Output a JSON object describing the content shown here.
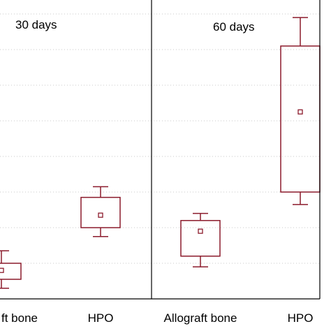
{
  "chart_data": {
    "type": "box",
    "grid": "horizontal dotted",
    "color": "#8b1a2b",
    "panels": [
      {
        "title": "30 days",
        "categories": [
          "Allograft bone",
          "HPO"
        ],
        "category_labels_shown": [
          "ft bone",
          "HPO"
        ],
        "boxes": [
          {
            "category": "Allograft bone",
            "whisker_low": 0.3,
            "q1": 0.55,
            "median": 0.8,
            "q3": 1.0,
            "whisker_high": 1.35
          },
          {
            "category": "HPO",
            "whisker_low": 1.75,
            "q1": 2.0,
            "median": 2.35,
            "q3": 2.85,
            "whisker_high": 3.15
          }
        ]
      },
      {
        "title": "60 days",
        "categories": [
          "Allograft bone",
          "HPO"
        ],
        "category_labels_shown": [
          "Allograft bone",
          "HPO"
        ],
        "boxes": [
          {
            "category": "Allograft bone",
            "whisker_low": 0.9,
            "q1": 1.2,
            "median": 1.9,
            "q3": 2.2,
            "whisker_high": 2.4
          },
          {
            "category": "HPO",
            "whisker_low": 2.65,
            "q1": 3.0,
            "median": 5.25,
            "q3": 7.1,
            "whisker_high": 7.9
          }
        ]
      }
    ],
    "y_axis": {
      "range": [
        0,
        8
      ],
      "gridlines": [
        0,
        1,
        2,
        3,
        4,
        5,
        6,
        7,
        8
      ]
    }
  }
}
